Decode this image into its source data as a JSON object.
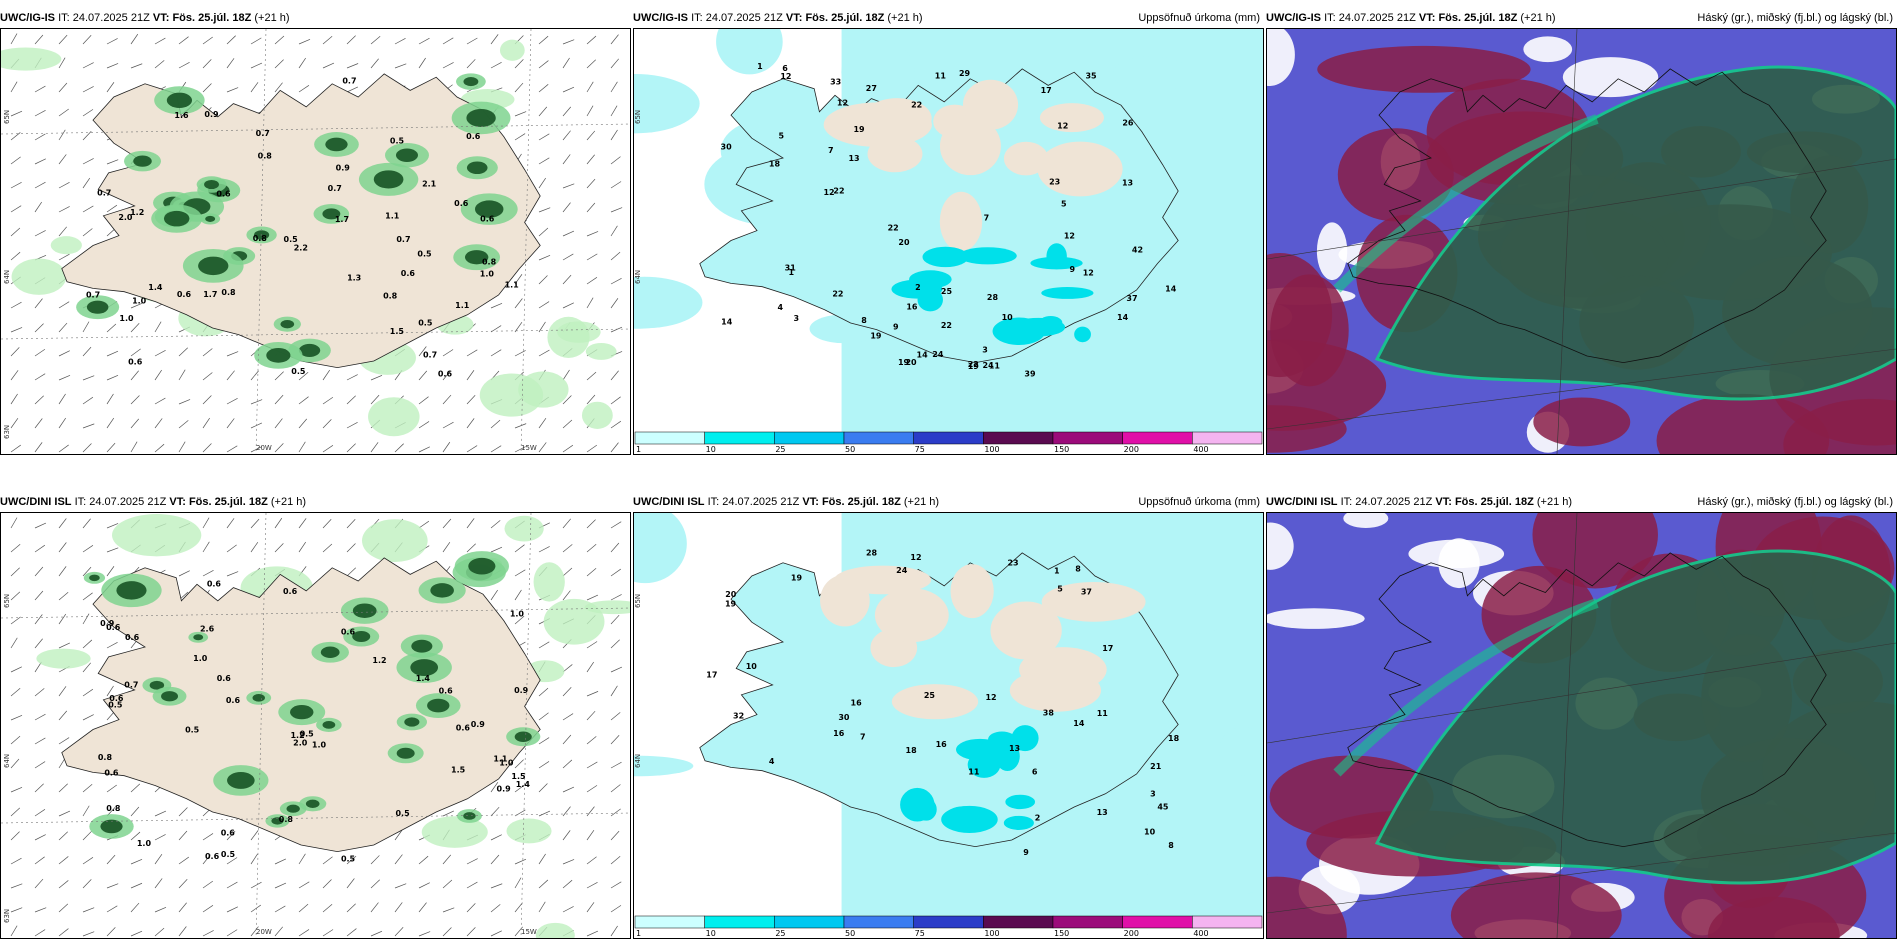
{
  "panels": [
    {
      "model": "UWC/IG-IS",
      "it": "24.07.2025 21Z",
      "vt": "Fös. 25.júl. 18Z",
      "lead": "(+21 h)",
      "title_right": "",
      "kind": "wind",
      "numbers": [
        "0.6",
        "0.8",
        "0.5",
        "0.5",
        "0.9",
        "2.1",
        "1.5",
        "2.0",
        "1.1",
        "1.4",
        "1.0",
        "0.8",
        "0.7",
        "1.6",
        "0.5",
        "0.6",
        "0.7",
        "0.5",
        "0.7",
        "0.7",
        "1.0",
        "0.6",
        "1.0",
        "1.7",
        "0.6",
        "0.6",
        "1.1",
        "1.2",
        "0.9",
        "0.7",
        "1.3",
        "0.7",
        "0.6",
        "1.1",
        "0.7",
        "2.2",
        "1.7",
        "0.6",
        "0.6",
        "0.8",
        "0.5",
        "0.8",
        "0.8"
      ],
      "lat_labels": [
        "65N",
        "64N",
        "63N"
      ],
      "lon_labels": [
        "20W",
        "15W"
      ]
    },
    {
      "model": "UWC/IG-IS",
      "it": "24.07.2025 21Z",
      "vt": "Fös. 25.júl. 18Z",
      "lead": "(+21 h)",
      "title_right": "Uppsöfnuð úrkoma (mm)",
      "kind": "precip",
      "numbers": [
        "3",
        "22",
        "19",
        "25",
        "22",
        "12",
        "14",
        "1",
        "16",
        "9",
        "11",
        "7",
        "18",
        "10",
        "8",
        "5",
        "12",
        "12",
        "22",
        "22",
        "14",
        "19",
        "30",
        "20",
        "22",
        "29",
        "12",
        "14",
        "13",
        "11",
        "23",
        "14",
        "13",
        "12",
        "31",
        "24",
        "22",
        "35",
        "42",
        "19",
        "27",
        "33",
        "39",
        "24",
        "28",
        "26",
        "37",
        "19",
        "17",
        "20",
        "9",
        "12",
        "2",
        "5",
        "6",
        "7",
        "1",
        "3",
        "4"
      ],
      "lat_labels": [
        "65N",
        "64N"
      ],
      "lon_labels": []
    },
    {
      "model": "UWC/IG-IS",
      "it": "24.07.2025 21Z",
      "vt": "Fös. 25.júl. 18Z",
      "lead": "(+21 h)",
      "title_right": "Háský (gr.), miðský (fj.bl.) og lágský (bl.)",
      "kind": "cloud",
      "numbers": [],
      "lat_labels": [],
      "lon_labels": []
    },
    {
      "model": "UWC/DINI ISL",
      "it": "24.07.2025 21Z",
      "vt": "Fös. 25.júl. 18Z",
      "lead": "(+21 h)",
      "title_right": "",
      "kind": "wind",
      "numbers": [
        "0.5",
        "0.6",
        "0.6",
        "0.5",
        "0.5",
        "0.8",
        "0.6",
        "1.4",
        "1.0",
        "0.5",
        "0.6",
        "1.4",
        "0.8",
        "0.5",
        "0.6",
        "1.5",
        "1.0",
        "0.8",
        "0.6",
        "0.6",
        "1.2",
        "1.0",
        "0.6",
        "0.9",
        "0.6",
        "2.6",
        "0.9",
        "0.6",
        "0.6",
        "0.9",
        "1.1",
        "0.7",
        "1.2",
        "2.0",
        "1.0",
        "0.6",
        "0.5",
        "0.6",
        "1.0",
        "0.9",
        "1.5"
      ],
      "lat_labels": [
        "65N",
        "64N",
        "63N"
      ],
      "lon_labels": [
        "20W",
        "15W"
      ]
    },
    {
      "model": "UWC/DINI ISL",
      "it": "24.07.2025 21Z",
      "vt": "Fös. 25.júl. 18Z",
      "lead": "(+21 h)",
      "title_right": "Uppsöfnuð úrkoma (mm)",
      "kind": "precip",
      "numbers": [
        "10",
        "8",
        "13",
        "30",
        "16",
        "19",
        "12",
        "21",
        "11",
        "9",
        "17",
        "24",
        "14",
        "16",
        "18",
        "32",
        "20",
        "16",
        "17",
        "19",
        "23",
        "25",
        "37",
        "28",
        "45",
        "38",
        "18",
        "13",
        "12",
        "11",
        "10",
        "7",
        "5",
        "3",
        "4",
        "6",
        "2",
        "1",
        "8"
      ],
      "lat_labels": [
        "65N",
        "64N"
      ],
      "lon_labels": []
    },
    {
      "model": "UWC/DINI ISL",
      "it": "24.07.2025 21Z",
      "vt": "Fös. 25.júl. 18Z",
      "lead": "(+21 h)",
      "title_right": "Háský (gr.), miðský (fj.bl.) og lágský (bl.)",
      "kind": "cloud",
      "numbers": [],
      "lat_labels": [],
      "lon_labels": []
    }
  ],
  "precip_colorbar": {
    "labels": [
      "1",
      "10",
      "25",
      "50",
      "75",
      "100",
      "150",
      "200",
      "400"
    ],
    "colors": [
      "#ccffff",
      "#00eeee",
      "#00c8f0",
      "#3a7cf0",
      "#2b3cc8",
      "#5a0a50",
      "#9b0b7a",
      "#e010a8",
      "#f4b4f0"
    ]
  },
  "palette": {
    "land": "#efe4d6",
    "wind_light": "#bff0bf",
    "wind_mid": "#7fd48f",
    "wind_dark": "#1e5a2a",
    "precip_sea": "#b3f5f7",
    "precip_mid": "#00e0ea",
    "cloud_high": "#2e5e4a",
    "cloud_high_edge": "#14c88a",
    "cloud_mid": "#8a1f48",
    "cloud_low": "#5a5ad0"
  }
}
